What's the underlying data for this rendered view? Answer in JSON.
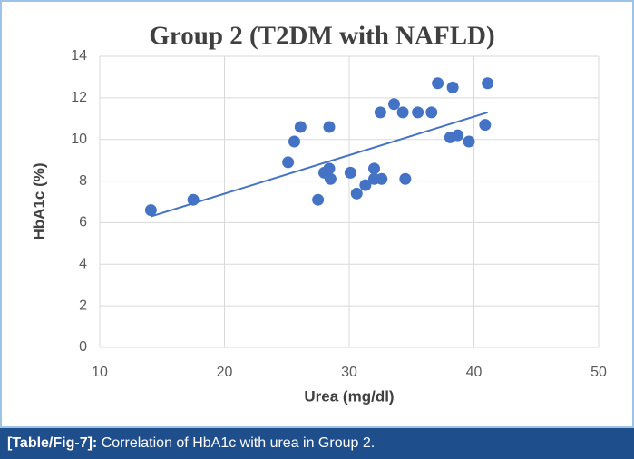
{
  "chart_data": {
    "type": "scatter",
    "title": "Group 2 (T2DM with NAFLD)",
    "x_label": "Urea (mg/dl)",
    "y_label": "HbA1c (%)",
    "x": [
      14.1,
      17.5,
      25.1,
      25.6,
      26.1,
      27.5,
      28.0,
      28.4,
      28.5,
      28.4,
      30.1,
      30.6,
      31.3,
      32.0,
      32.0,
      32.6,
      32.5,
      33.6,
      34.3,
      34.5,
      35.5,
      36.6,
      37.1,
      38.3,
      38.1,
      38.7,
      39.6,
      40.9,
      41.1
    ],
    "values": [
      6.6,
      7.1,
      8.9,
      9.9,
      10.6,
      7.1,
      8.4,
      8.6,
      8.1,
      10.6,
      8.4,
      7.4,
      7.8,
      8.6,
      8.1,
      8.1,
      11.3,
      11.7,
      11.3,
      8.1,
      11.3,
      11.3,
      12.7,
      12.5,
      10.1,
      10.2,
      9.9,
      10.7,
      12.7
    ],
    "color": "#4472c4",
    "trendline": {
      "x": [
        14.1,
        41.1
      ],
      "values": [
        6.3,
        11.3
      ],
      "color": "#4472c4"
    },
    "xlim": [
      10,
      50
    ],
    "xticks": [
      10,
      20,
      30,
      40,
      50
    ],
    "ylim": [
      0,
      14
    ],
    "yticks": [
      0,
      2,
      4,
      6,
      8,
      10,
      12,
      14
    ],
    "grid": true
  },
  "caption": {
    "label": "[Table/Fig-7]:",
    "text": "Correlation of HbA1c with urea in Group 2."
  }
}
